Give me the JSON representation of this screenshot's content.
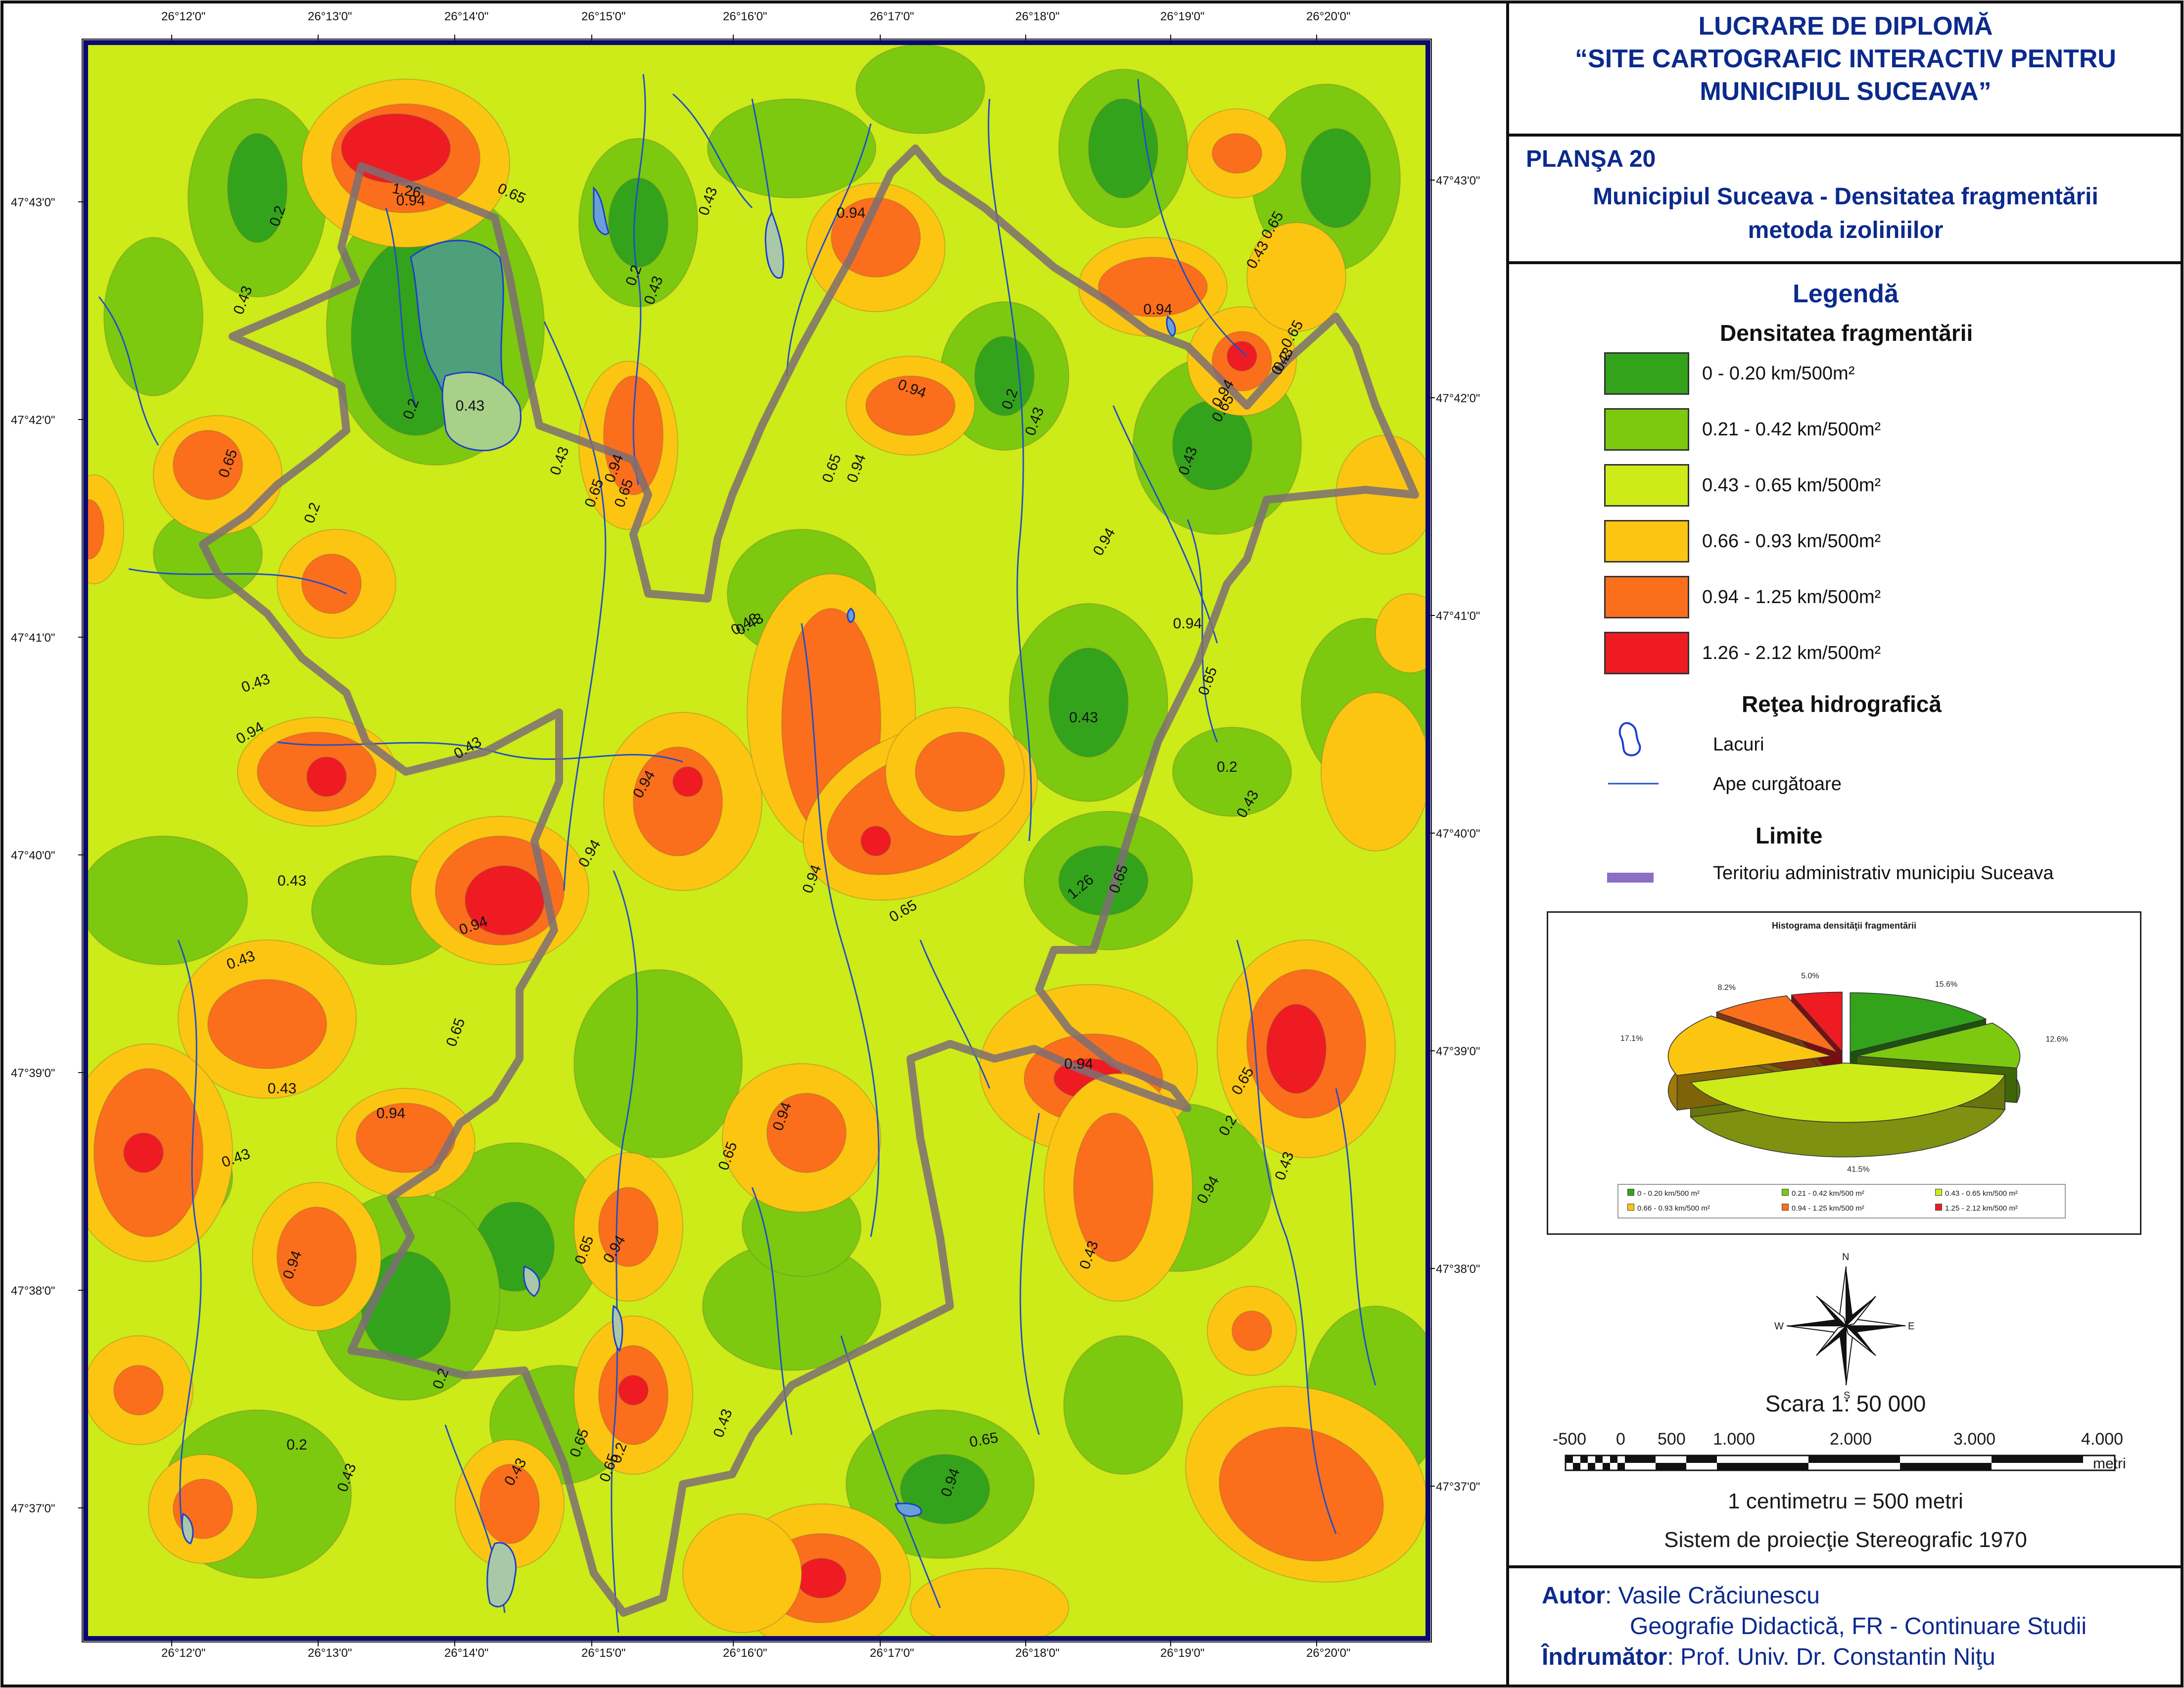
{
  "title_block": {
    "line1": "LUCRARE DE DIPLOMĂ",
    "line2": "“SITE CARTOGRAFIC INTERACTIV PENTRU",
    "line3": "MUNICIPIUL SUCEAVA”"
  },
  "plate": {
    "number": "PLANŞA 20",
    "title1": "Municipiul Suceava - Densitatea fragmentării",
    "title2": "metoda izoliniilor"
  },
  "legend": {
    "title": "Legendă",
    "density_heading": "Densitatea fragmentării",
    "classes": [
      {
        "label": "0 - 0.20 km/500m²",
        "color": "#33a31b"
      },
      {
        "label": "0.21 - 0.42 km/500m²",
        "color": "#7cc90f"
      },
      {
        "label": "0.43 - 0.65 km/500m²",
        "color": "#cdea19"
      },
      {
        "label": "0.66 - 0.93 km/500m²",
        "color": "#fcc511"
      },
      {
        "label": "0.94 - 1.25 km/500m²",
        "color": "#fb6e1c"
      },
      {
        "label": "1.26 - 2.12 km/500m²",
        "color": "#ee1b22"
      }
    ],
    "hydro_heading": "Reţea hidrografică",
    "lakes_label": "Lacuri",
    "rivers_label": "Ape curgătoare",
    "limits_heading": "Limite",
    "boundary_label": "Teritoriu administrativ municipiu Suceava",
    "colors": {
      "lake_outline": "#1e3fcc",
      "river": "#2050c8",
      "boundary": "#8a6fc4"
    }
  },
  "chart_data": {
    "type": "pie",
    "title": "Histograma densităţii fragmentării",
    "labels": [
      "0 - 0.20 km/500 m²",
      "0.21 - 0.42 km/500 m²",
      "0.43 - 0.65 km/500 m²",
      "0.66 - 0.93 km/500 m²",
      "0.94 - 1.25 km/500 m²",
      "1.25 - 2.12 km/500 m²"
    ],
    "values": [
      15.6,
      12.6,
      41.5,
      17.1,
      8.2,
      5.0
    ],
    "value_labels": [
      "15.6%",
      "12.6%",
      "41.5%",
      "17.1%",
      "8.2%",
      "5.0%"
    ],
    "colors": [
      "#33a31b",
      "#7cc90f",
      "#cdea19",
      "#fcc511",
      "#fb6e1c",
      "#ee1b22"
    ],
    "style": "3D exploded pie",
    "legend_position": "bottom"
  },
  "compass": {
    "n": "N",
    "s": "S",
    "e": "E",
    "w": "W"
  },
  "scale": {
    "text": "Scara 1: 50 000",
    "ticks": [
      "-500",
      "0",
      "500",
      "1.000",
      "2.000",
      "3.000",
      "4.000"
    ],
    "unit": "metri",
    "equivalence": "1 centimetru = 500 metri",
    "projection": "Sistem de proiecţie Stereografic 1970"
  },
  "credits": {
    "author_label": "Autor",
    "author_name": ": Vasile Crăciunescu",
    "author_program": "Geografie Didactică, FR - Continuare Studii",
    "advisor_label": "Îndrumător",
    "advisor_name": ": Prof. Univ. Dr. Constantin Niţu"
  },
  "map": {
    "lon_labels": [
      "26°12'0\"",
      "26°13'0\"",
      "26°14'0\"",
      "26°15'0\"",
      "26°16'0\"",
      "26°17'0\"",
      "26°18'0\"",
      "26°19'0\"",
      "26°20'0\""
    ],
    "lat_labels": [
      "47°43'0\"",
      "47°42'0\"",
      "47°41'0\"",
      "47°40'0\"",
      "47°39'0\"",
      "47°38'0\"",
      "47°37'0\""
    ],
    "isoline_labels": [
      "1.26",
      "0.94",
      "0.65",
      "0.2",
      "0.43",
      "0.43",
      "0.2",
      "0.43",
      "0.94",
      "0.94",
      "0.94",
      "0.65",
      "0.43",
      "0.2",
      "0.43",
      "0.94",
      "0.65",
      "0.43",
      "0.2",
      "0.94",
      "0.65",
      "0.43",
      "0.65",
      "0.2",
      "0.43",
      "0.43",
      "0.65",
      "0.94",
      "0.43",
      "0.65",
      "0.2",
      "0.65",
      "0.94",
      "0.43",
      "0.94",
      "0.65",
      "0.43",
      "0.94",
      "0.43",
      "0.43",
      "0.2",
      "0.43",
      "0.94",
      "0.94",
      "0.43",
      "0.94",
      "0.65",
      "0.94",
      "0.65",
      "1.26",
      "0.94",
      "0.43",
      "0.65",
      "0.43",
      "0.94",
      "0.94",
      "0.65",
      "0.2",
      "0.43",
      "0.65",
      "0.43",
      "0.94",
      "0.65",
      "0.43",
      "0.94",
      "0.94",
      "0.2",
      "0.43",
      "0.2",
      "0.43",
      "0.65",
      "0.2",
      "0.43",
      "0.65",
      "0.94",
      "0.65"
    ]
  }
}
